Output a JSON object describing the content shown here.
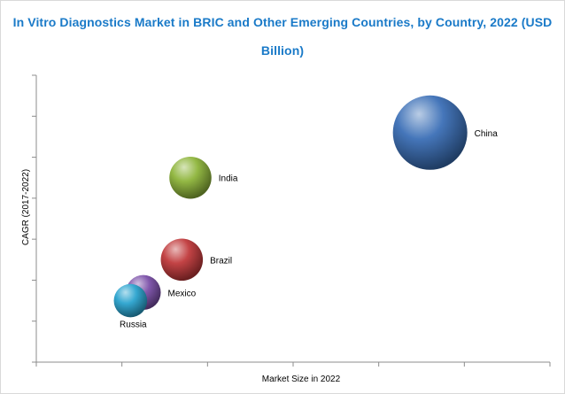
{
  "title_line1": "In Vitro Diagnostics Market in BRIC and Other Emerging Countries, by Country, 2022 (USD",
  "title_line2": "Billion)",
  "colors": {
    "title": "#1a7ac8",
    "china": "#3b6fb6",
    "india": "#8db43a",
    "brazil": "#c0393b",
    "mexico": "#7a4fa8",
    "russia": "#2aa3cf"
  },
  "chart_data": {
    "type": "bubble",
    "title": "In Vitro Diagnostics Market in BRIC and Other Emerging Countries, by Country, 2022 (USD Billion)",
    "xlabel": "Market Size in 2022",
    "ylabel": "CAGR (2017-2022)",
    "xlim": [
      0,
      6
    ],
    "ylim": [
      0,
      7
    ],
    "grid": false,
    "x_ticks_labeled": false,
    "y_ticks_labeled": false,
    "series": [
      {
        "name": "China",
        "x": 4.6,
        "y": 5.6,
        "size": 10,
        "color": "china"
      },
      {
        "name": "India",
        "x": 1.8,
        "y": 4.5,
        "size": 3.2,
        "color": "india"
      },
      {
        "name": "Brazil",
        "x": 1.7,
        "y": 2.5,
        "size": 3.2,
        "color": "brazil"
      },
      {
        "name": "Mexico",
        "x": 1.25,
        "y": 1.7,
        "size": 2.2,
        "color": "mexico"
      },
      {
        "name": "Russia",
        "x": 1.1,
        "y": 1.5,
        "size": 2.0,
        "color": "russia"
      }
    ]
  }
}
